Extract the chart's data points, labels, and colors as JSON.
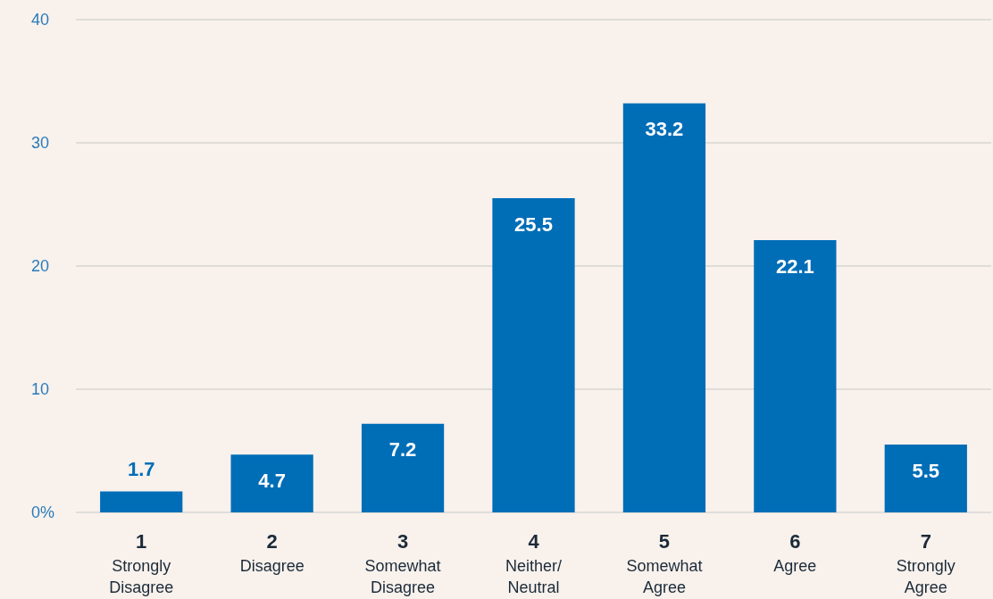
{
  "chart_data": {
    "type": "bar",
    "categories": [
      "1\nStrongly\nDisagree",
      "2\nDisagree",
      "3\nSomewhat\nDisagree",
      "4\nNeither/\nNeutral",
      "5\nSomewhat\nAgree",
      "6\nAgree",
      "7\nStrongly\nAgree"
    ],
    "values": [
      1.7,
      4.7,
      7.2,
      25.5,
      33.2,
      22.1,
      5.5
    ],
    "color": "#006db7",
    "ylim": [
      0,
      40
    ],
    "yticks": [
      {
        "value": 0,
        "label": "0%"
      },
      10,
      20,
      30,
      40
    ],
    "grid": "y",
    "data_labels": true
  }
}
